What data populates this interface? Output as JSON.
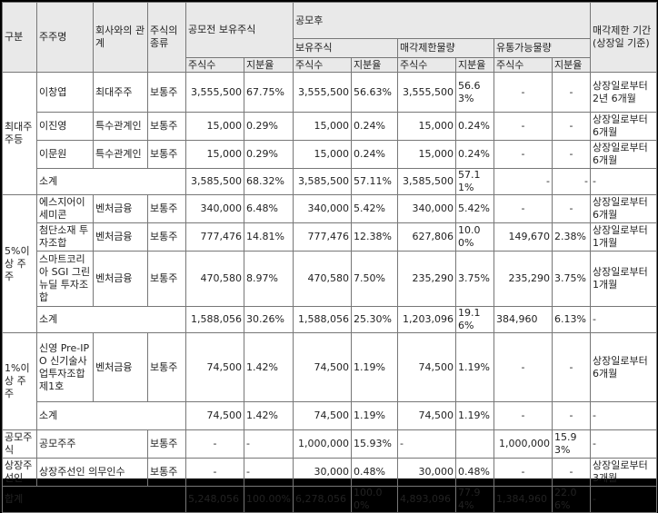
{
  "header": {
    "category": "구분",
    "shareholder": "주주명",
    "relation": "회사와의 관계",
    "stock_type": "주식의 종류",
    "pre_ipo": "공모전 보유주식",
    "post_ipo": "공모후",
    "held": "보유주식",
    "restricted": "매각제한물량",
    "tradable": "유통가능물량",
    "period": "매각제한 기간 (상장일 기준)",
    "shares": "주식수",
    "ratio": "지분율"
  },
  "groups": {
    "largest": "최대주주등",
    "five_pct": "5%이상 주주",
    "one_pct": "1%이상 주주",
    "ipo": "공모주식",
    "underwriter": "상장주선인"
  },
  "rows": {
    "r1": {
      "name": "이창엽",
      "relation": "최대주주",
      "type": "보통주",
      "pre_shares": "3,555,500",
      "pre_ratio": "67.75%",
      "held_shares": "3,555,500",
      "held_ratio": "56.63%",
      "res_shares": "3,555,500",
      "res_ratio": "56.63%",
      "trd_shares": "-",
      "trd_ratio": "-",
      "period": "상장일로부터 2년 6개월"
    },
    "r2": {
      "name": "이진영",
      "relation": "특수관계인",
      "type": "보통주",
      "pre_shares": "15,000",
      "pre_ratio": "0.29%",
      "held_shares": "15,000",
      "held_ratio": "0.24%",
      "res_shares": "15,000",
      "res_ratio": "0.24%",
      "trd_shares": "-",
      "trd_ratio": "-",
      "period": "상장일로부터 6개월"
    },
    "r3": {
      "name": "이문원",
      "relation": "특수관계인",
      "type": "보통주",
      "pre_shares": "15,000",
      "pre_ratio": "0.29%",
      "held_shares": "15,000",
      "held_ratio": "0.24%",
      "res_shares": "15,000",
      "res_ratio": "0.24%",
      "trd_shares": "-",
      "trd_ratio": "-",
      "period": "상장일로부터 6개월"
    },
    "s1": {
      "name": "소계",
      "pre_shares": "3,585,500",
      "pre_ratio": "68.32%",
      "held_shares": "3,585,500",
      "held_ratio": "57.11%",
      "res_shares": "3,585,500",
      "res_ratio": "57.11%",
      "trd_shares": "-",
      "trd_ratio": "-",
      "period": "-"
    },
    "r4": {
      "name": "에스지어이 세미콘",
      "relation": "벤처금융",
      "type": "보통주",
      "pre_shares": "340,000",
      "pre_ratio": "6.48%",
      "held_shares": "340,000",
      "held_ratio": "5.42%",
      "res_shares": "340,000",
      "res_ratio": "5.42%",
      "trd_shares": "-",
      "trd_ratio": "-",
      "period": "상장일로부터 6개월"
    },
    "r5": {
      "name": "첨단소재 투자조합",
      "relation": "벤처금융",
      "type": "보통주",
      "pre_shares": "777,476",
      "pre_ratio": "14.81%",
      "held_shares": "777,476",
      "held_ratio": "12.38%",
      "res_shares": "627,806",
      "res_ratio": "10.00%",
      "trd_shares": "149,670",
      "trd_ratio": "2.38%",
      "period": "상장일로부터 1개월"
    },
    "r6": {
      "name": "스마트코리아 SGI 그린뉴딜 투자조합",
      "relation": "벤처금융",
      "type": "보통주",
      "pre_shares": "470,580",
      "pre_ratio": "8.97%",
      "held_shares": "470,580",
      "held_ratio": "7.50%",
      "res_shares": "235,290",
      "res_ratio": "3.75%",
      "trd_shares": "235,290",
      "trd_ratio": "3.75%",
      "period": "상장일로부터 1개월"
    },
    "s2": {
      "name": "소계",
      "pre_shares": "1,588,056",
      "pre_ratio": "30.26%",
      "held_shares": "1,588,056",
      "held_ratio": "25.30%",
      "res_shares": "1,203,096",
      "res_ratio": "19.16%",
      "trd_shares": "384,960",
      "trd_ratio": "6.13%",
      "period": "-"
    },
    "r7": {
      "name": "신영 Pre-IPO 신기술사업투자조합 제1호",
      "relation": "벤처금융",
      "type": "보통주",
      "pre_shares": "74,500",
      "pre_ratio": "1.42%",
      "held_shares": "74,500",
      "held_ratio": "1.19%",
      "res_shares": "74,500",
      "res_ratio": "1.19%",
      "trd_shares": "-",
      "trd_ratio": "-",
      "period": "상장일로부터 6개월"
    },
    "s3": {
      "name": "소계",
      "pre_shares": "74,500",
      "pre_ratio": "1.42%",
      "held_shares": "74,500",
      "held_ratio": "1.19%",
      "res_shares": "74,500",
      "res_ratio": "1.19%",
      "trd_shares": "-",
      "trd_ratio": "-",
      "period": "-"
    },
    "r8": {
      "name": "공모주주",
      "type": "보통주",
      "pre_shares": "-",
      "pre_ratio": "-",
      "held_shares": "1,000,000",
      "held_ratio": "15.93%",
      "res_shares": "-",
      "res_ratio": "",
      "trd_shares": "1,000,000",
      "trd_ratio": "15.93%",
      "period": "-"
    },
    "r9": {
      "name": "상장주선인 의무인수",
      "type": "보통주",
      "pre_shares": "-",
      "pre_ratio": "-",
      "held_shares": "30,000",
      "held_ratio": "0.48%",
      "res_shares": "30,000",
      "res_ratio": "0.48%",
      "trd_shares": "-",
      "trd_ratio": "-",
      "period": "상장일로부터 3개월"
    },
    "total": {
      "name": "합계",
      "pre_shares": "5,248,056",
      "pre_ratio": "100.00%",
      "held_shares": "6,278,056",
      "held_ratio": "100.00%",
      "res_shares": "4,893,096",
      "res_ratio": "77.94%",
      "trd_shares": "1,384,960",
      "trd_ratio": "22.06%",
      "period": "-"
    }
  }
}
